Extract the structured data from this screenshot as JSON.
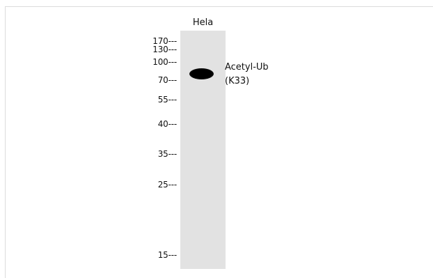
{
  "sample_label": "Hela",
  "markers": [
    "170---",
    "130---",
    "100---",
    "70---",
    "55---",
    "40---",
    "35---",
    "25---",
    "15---"
  ],
  "target": {
    "line1": "Acetyl-Ub",
    "line2": "(K33)"
  },
  "colors": {
    "lane": "#e2e2e2",
    "band": "#000000",
    "frame": "#dcdcdc"
  }
}
